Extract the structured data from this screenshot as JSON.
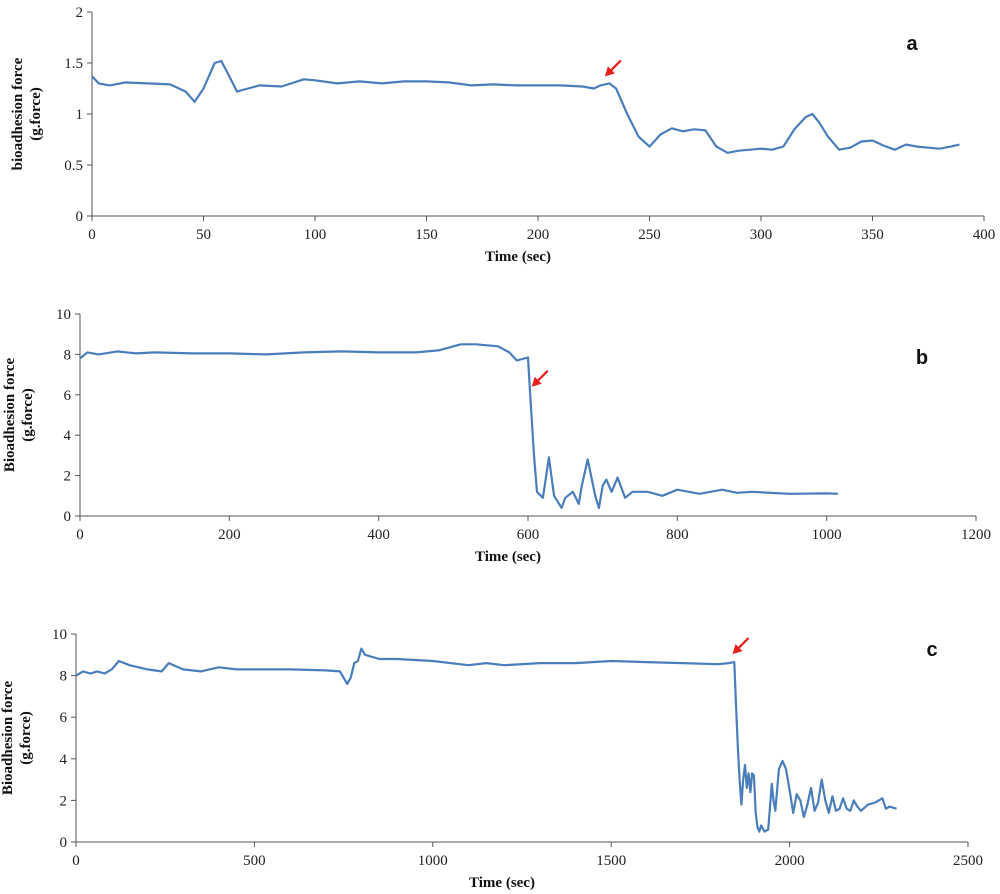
{
  "colors": {
    "series": "#4a7ebb",
    "arrow": "#e8201c",
    "axis": "#555555"
  },
  "chart_data": [
    {
      "type": "line",
      "panel_label": "a",
      "xlabel": "Time (sec)",
      "ylabel": "bioadhesion force (g.force)",
      "ylabel_lines": [
        "bioadhesion force",
        "(g.force)"
      ],
      "xlim": [
        0,
        400
      ],
      "ylim": [
        0,
        2
      ],
      "xticks": [
        0,
        50,
        100,
        150,
        200,
        250,
        300,
        350,
        400
      ],
      "yticks": [
        0,
        0.5,
        1,
        1.5,
        2
      ],
      "grid": false,
      "arrow_x": 230,
      "series": [
        {
          "x": [
            0,
            3,
            8,
            15,
            25,
            35,
            42,
            46,
            50,
            55,
            58,
            62,
            65,
            70,
            75,
            85,
            95,
            100,
            110,
            120,
            130,
            140,
            150,
            160,
            170,
            180,
            190,
            200,
            210,
            220,
            225,
            228,
            230,
            232,
            235,
            240,
            245,
            250,
            255,
            260,
            265,
            270,
            275,
            280,
            285,
            290,
            300,
            305,
            310,
            315,
            320,
            323,
            326,
            330,
            335,
            340,
            345,
            350,
            355,
            360,
            365,
            370,
            375,
            380,
            385,
            389
          ],
          "y": [
            1.37,
            1.3,
            1.28,
            1.31,
            1.3,
            1.29,
            1.22,
            1.12,
            1.25,
            1.5,
            1.52,
            1.35,
            1.22,
            1.25,
            1.28,
            1.27,
            1.34,
            1.33,
            1.3,
            1.32,
            1.3,
            1.32,
            1.32,
            1.31,
            1.28,
            1.29,
            1.28,
            1.28,
            1.28,
            1.27,
            1.25,
            1.28,
            1.29,
            1.3,
            1.25,
            1.0,
            0.78,
            0.68,
            0.8,
            0.86,
            0.83,
            0.85,
            0.84,
            0.68,
            0.62,
            0.64,
            0.66,
            0.65,
            0.68,
            0.85,
            0.97,
            1.0,
            0.92,
            0.78,
            0.65,
            0.67,
            0.73,
            0.74,
            0.69,
            0.65,
            0.7,
            0.68,
            0.67,
            0.66,
            0.68,
            0.7
          ]
        }
      ]
    },
    {
      "type": "line",
      "panel_label": "b",
      "xlabel": "Time (sec)",
      "ylabel": "Bioadhesion force (g.force)",
      "ylabel_lines": [
        "Bioadhesion force",
        "(g.force)"
      ],
      "xlim": [
        0,
        1200
      ],
      "ylim": [
        0,
        10
      ],
      "xticks": [
        0,
        200,
        400,
        600,
        800,
        1000,
        1200
      ],
      "yticks": [
        0,
        2,
        4,
        6,
        8,
        10
      ],
      "grid": false,
      "arrow_x": 605,
      "series": [
        {
          "x": [
            0,
            10,
            25,
            50,
            75,
            100,
            150,
            200,
            250,
            300,
            350,
            400,
            450,
            480,
            510,
            530,
            560,
            575,
            585,
            595,
            600,
            603,
            608,
            612,
            620,
            628,
            635,
            645,
            650,
            660,
            668,
            672,
            680,
            690,
            695,
            700,
            705,
            712,
            720,
            730,
            740,
            760,
            780,
            800,
            830,
            860,
            880,
            900,
            950,
            1000,
            1015
          ],
          "y": [
            7.8,
            8.1,
            8.0,
            8.15,
            8.05,
            8.1,
            8.05,
            8.05,
            8.0,
            8.1,
            8.15,
            8.1,
            8.1,
            8.2,
            8.5,
            8.5,
            8.4,
            8.1,
            7.7,
            7.8,
            7.85,
            6.0,
            3.0,
            1.2,
            0.9,
            2.9,
            1.0,
            0.4,
            0.9,
            1.2,
            0.6,
            1.5,
            2.8,
            1.0,
            0.4,
            1.5,
            1.8,
            1.2,
            1.9,
            0.9,
            1.2,
            1.2,
            1.0,
            1.3,
            1.1,
            1.3,
            1.15,
            1.2,
            1.1,
            1.12,
            1.1
          ]
        }
      ]
    },
    {
      "type": "line",
      "panel_label": "c",
      "xlabel": "Time (sec)",
      "ylabel": "Bioadhesion force (g.force)",
      "ylabel_lines": [
        "Bioadhesion force",
        "(g.force)"
      ],
      "xlim": [
        0,
        2500
      ],
      "ylim": [
        0,
        10
      ],
      "xticks": [
        0,
        500,
        1000,
        1500,
        2000,
        2500
      ],
      "yticks": [
        0,
        2,
        4,
        6,
        8,
        10
      ],
      "grid": false,
      "arrow_x": 1840,
      "series": [
        {
          "x": [
            0,
            20,
            40,
            60,
            80,
            100,
            120,
            150,
            200,
            240,
            260,
            300,
            350,
            400,
            450,
            500,
            600,
            700,
            740,
            760,
            770,
            780,
            790,
            800,
            810,
            850,
            900,
            1000,
            1100,
            1150,
            1200,
            1300,
            1400,
            1500,
            1600,
            1700,
            1800,
            1830,
            1845,
            1850,
            1855,
            1860,
            1865,
            1870,
            1875,
            1880,
            1885,
            1890,
            1895,
            1900,
            1905,
            1910,
            1915,
            1920,
            1930,
            1940,
            1950,
            1955,
            1960,
            1970,
            1980,
            1990,
            2000,
            2010,
            2020,
            2030,
            2040,
            2050,
            2060,
            2070,
            2080,
            2090,
            2100,
            2110,
            2120,
            2130,
            2140,
            2150,
            2160,
            2170,
            2180,
            2190,
            2200,
            2220,
            2240,
            2260,
            2270,
            2280,
            2300
          ],
          "y": [
            8.0,
            8.2,
            8.1,
            8.2,
            8.1,
            8.3,
            8.7,
            8.5,
            8.3,
            8.2,
            8.6,
            8.3,
            8.2,
            8.4,
            8.3,
            8.3,
            8.3,
            8.25,
            8.2,
            7.6,
            7.9,
            8.6,
            8.7,
            9.3,
            9.0,
            8.8,
            8.8,
            8.7,
            8.5,
            8.6,
            8.5,
            8.6,
            8.6,
            8.7,
            8.65,
            8.6,
            8.55,
            8.6,
            8.65,
            6.5,
            4.5,
            3.0,
            1.8,
            3.0,
            3.7,
            2.6,
            3.3,
            2.4,
            3.3,
            3.2,
            1.4,
            0.7,
            0.5,
            0.8,
            0.5,
            0.6,
            2.8,
            2.0,
            1.5,
            3.5,
            3.9,
            3.5,
            2.5,
            1.4,
            2.3,
            2.0,
            1.2,
            1.8,
            2.6,
            1.5,
            1.9,
            3.0,
            2.0,
            1.4,
            2.2,
            1.5,
            1.6,
            2.1,
            1.6,
            1.5,
            2.0,
            1.7,
            1.5,
            1.8,
            1.9,
            2.1,
            1.6,
            1.7,
            1.6
          ]
        }
      ]
    }
  ]
}
